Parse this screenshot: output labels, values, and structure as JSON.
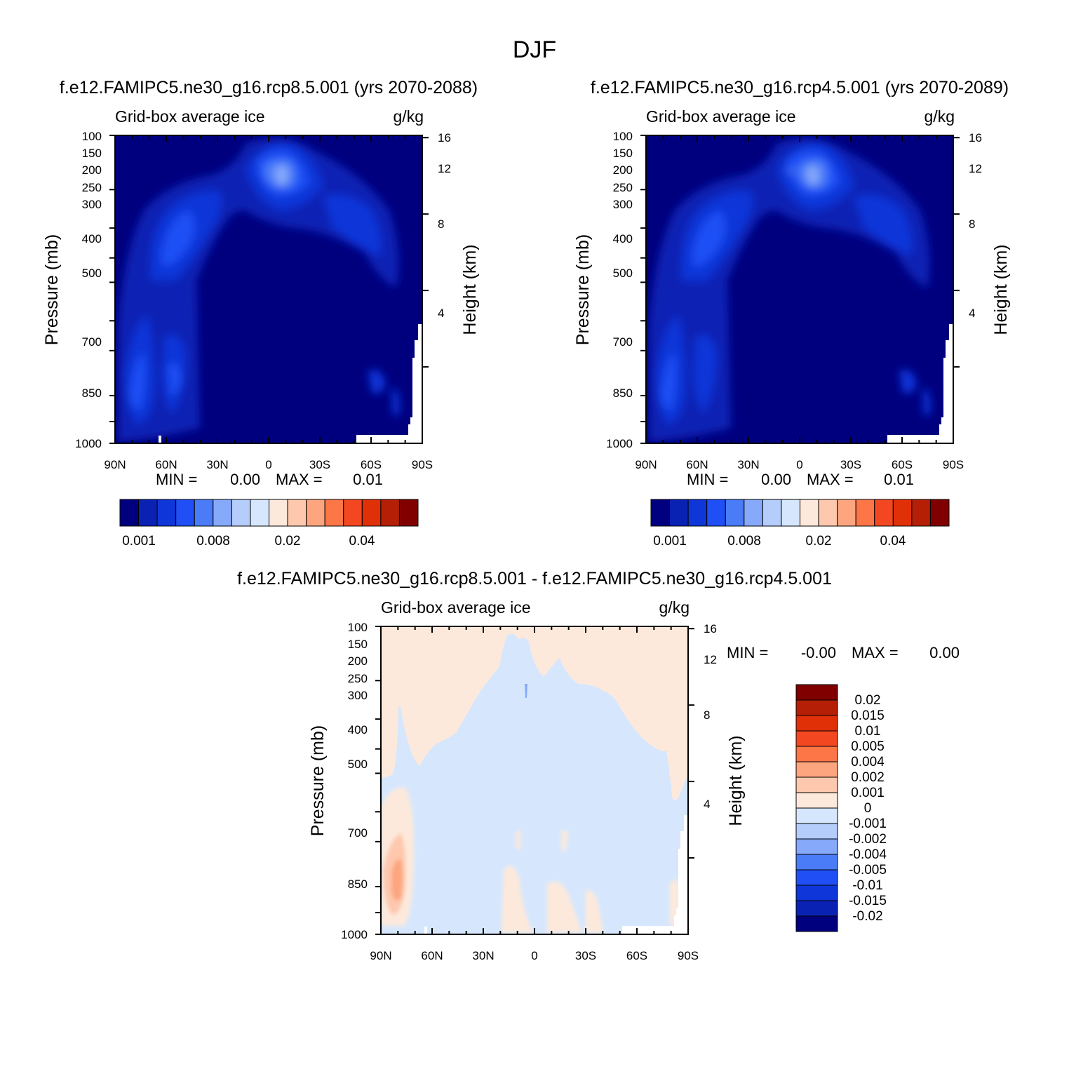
{
  "figure_title": "DJF",
  "colors": {
    "abs_scale": [
      "#00007f",
      "#0a22b4",
      "#0f36d8",
      "#1f4ff5",
      "#4a7cf8",
      "#86a9fa",
      "#b5cdfb",
      "#d6e7fd",
      "#fde9db",
      "#fdc8ad",
      "#fca57f",
      "#fc7647",
      "#f34721",
      "#e03008",
      "#b51f06",
      "#800000"
    ],
    "diff_scale": [
      "#00007f",
      "#0a22b4",
      "#0f36d8",
      "#1f4ff5",
      "#4a7cf8",
      "#86a9fa",
      "#b5cdfb",
      "#d6e7fd",
      "#fde9db",
      "#fdc8ad",
      "#fca57f",
      "#fc7647",
      "#f34721",
      "#e03008",
      "#b51f06",
      "#800000"
    ],
    "plot_bg": "#00007f",
    "diff_bg_pos": "#fde9db",
    "diff_bg_neg": "#d6e7fd"
  },
  "chart_data": [
    {
      "type": "heatmap",
      "subtitle": "f.e12.FAMIPC5.ne30_g16.rcp8.5.001 (yrs 2070-2088)",
      "title_left": "Grid-box average ice",
      "title_right": "g/kg",
      "xlabel": "",
      "ylabel": "Pressure (mb)",
      "y2label": "Height (km)",
      "x_ticks": [
        "90N",
        "60N",
        "30N",
        "0",
        "30S",
        "60S",
        "90S"
      ],
      "y_ticks": [
        "100",
        "150",
        "200",
        "250",
        "300",
        "400",
        "500",
        "700",
        "850",
        "1000"
      ],
      "y_tick_values": [
        100,
        150,
        200,
        250,
        300,
        400,
        500,
        700,
        850,
        1000
      ],
      "y2_ticks": [
        "16",
        "12",
        "8",
        "4"
      ],
      "y2_tick_values": [
        16,
        12,
        8,
        4
      ],
      "xlim": [
        90,
        -90
      ],
      "ylim": [
        1000,
        100
      ],
      "stats": {
        "min_label": "MIN =",
        "min": "0.00",
        "max_label": "MAX =",
        "max": "0.01"
      },
      "colorbar_labels": [
        "0.001",
        "0.008",
        "0.02",
        "0.04"
      ],
      "features": [
        {
          "name": "upper-tropical-max",
          "lat": 5,
          "p": 200,
          "level": 5
        },
        {
          "name": "nh-midlat-band",
          "lat": 55,
          "p": 400,
          "level": 3
        },
        {
          "name": "sh-midlat-band",
          "lat": -55,
          "p": 400,
          "level": 2
        },
        {
          "name": "arctic-lowlevel",
          "lat": 75,
          "p": 800,
          "level": 4
        }
      ]
    },
    {
      "type": "heatmap",
      "subtitle": "f.e12.FAMIPC5.ne30_g16.rcp4.5.001 (yrs 2070-2089)",
      "title_left": "Grid-box average ice",
      "title_right": "g/kg",
      "xlabel": "",
      "ylabel": "Pressure (mb)",
      "y2label": "Height (km)",
      "x_ticks": [
        "90N",
        "60N",
        "30N",
        "0",
        "30S",
        "60S",
        "90S"
      ],
      "y_ticks": [
        "100",
        "150",
        "200",
        "250",
        "300",
        "400",
        "500",
        "700",
        "850",
        "1000"
      ],
      "y_tick_values": [
        100,
        150,
        200,
        250,
        300,
        400,
        500,
        700,
        850,
        1000
      ],
      "y2_ticks": [
        "16",
        "12",
        "8",
        "4"
      ],
      "y2_tick_values": [
        16,
        12,
        8,
        4
      ],
      "xlim": [
        90,
        -90
      ],
      "ylim": [
        1000,
        100
      ],
      "stats": {
        "min_label": "MIN =",
        "min": "0.00",
        "max_label": "MAX =",
        "max": "0.01"
      },
      "colorbar_labels": [
        "0.001",
        "0.008",
        "0.02",
        "0.04"
      ],
      "features": [
        {
          "name": "upper-tropical-max",
          "lat": 5,
          "p": 200,
          "level": 5
        },
        {
          "name": "nh-midlat-band",
          "lat": 55,
          "p": 400,
          "level": 3
        },
        {
          "name": "sh-midlat-band",
          "lat": -55,
          "p": 400,
          "level": 2
        },
        {
          "name": "arctic-lowlevel",
          "lat": 75,
          "p": 800,
          "level": 3
        }
      ]
    },
    {
      "type": "heatmap",
      "subtitle": "f.e12.FAMIPC5.ne30_g16.rcp8.5.001 - f.e12.FAMIPC5.ne30_g16.rcp4.5.001",
      "title_left": "Grid-box average ice",
      "title_right": "g/kg",
      "xlabel": "",
      "ylabel": "Pressure (mb)",
      "y2label": "Height (km)",
      "x_ticks": [
        "90N",
        "60N",
        "30N",
        "0",
        "30S",
        "60S",
        "90S"
      ],
      "y_ticks": [
        "100",
        "150",
        "200",
        "250",
        "300",
        "400",
        "500",
        "700",
        "850",
        "1000"
      ],
      "y_tick_values": [
        100,
        150,
        200,
        250,
        300,
        400,
        500,
        700,
        850,
        1000
      ],
      "y2_ticks": [
        "16",
        "12",
        "8",
        "4"
      ],
      "y2_tick_values": [
        16,
        12,
        8,
        4
      ],
      "xlim": [
        90,
        -90
      ],
      "ylim": [
        1000,
        100
      ],
      "stats": {
        "min_label": "MIN =",
        "min": "-0.00",
        "max_label": "MAX =",
        "max": "0.00"
      },
      "colorbar_labels": [
        "0.02",
        "0.015",
        "0.01",
        "0.005",
        "0.004",
        "0.002",
        "0.001",
        "0",
        "-0.001",
        "-0.002",
        "-0.004",
        "-0.005",
        "-0.01",
        "-0.015",
        "-0.02"
      ],
      "features": [
        {
          "name": "arctic-positive-anomaly",
          "lat": 80,
          "p": 820,
          "sign": "positive"
        }
      ]
    }
  ]
}
